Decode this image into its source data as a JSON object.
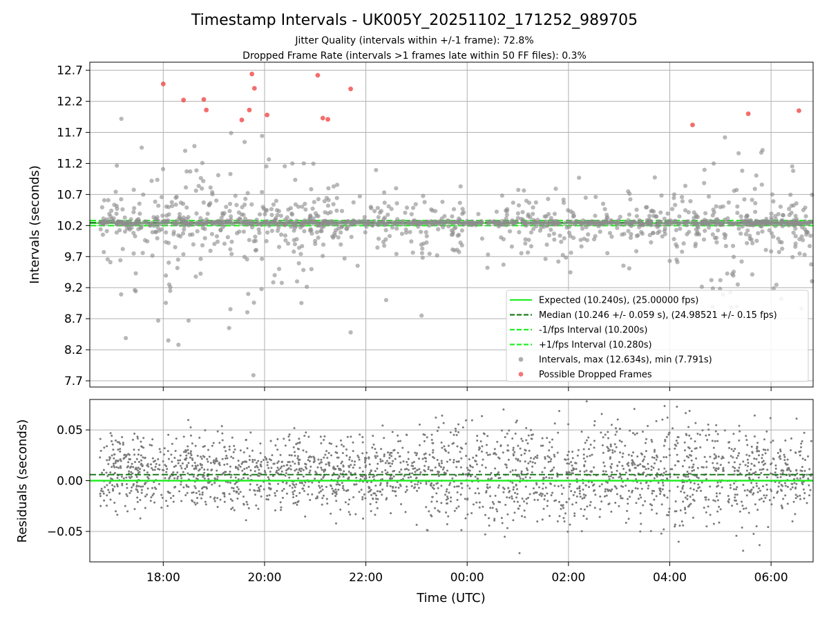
{
  "chart_data": [
    {
      "type": "scatter",
      "title": "Timestamp Intervals - UK005Y_20251102_171252_989705",
      "subtitle_lines": [
        "Jitter Quality (intervals within +/-1 frame): 72.8%",
        "Dropped Frame Rate (intervals >1 frames late within 50 FF files): 0.3%"
      ],
      "xlabel": "",
      "ylabel": "Intervals (seconds)",
      "x_unit": "hours since 00:00 UTC",
      "xlim": [
        -7.45,
        6.83
      ],
      "ylim": [
        7.6,
        12.83
      ],
      "yticks": [
        7.7,
        8.2,
        8.7,
        9.2,
        9.7,
        10.2,
        10.7,
        11.2,
        11.7,
        12.2,
        12.7
      ],
      "ytick_labels": [
        "7.7",
        "8.2",
        "8.7",
        "9.2",
        "9.7",
        "10.2",
        "10.7",
        "11.2",
        "11.7",
        "12.2",
        "12.7"
      ],
      "xticks": [
        -6,
        -4,
        -2,
        0,
        2,
        4,
        6
      ],
      "grid": true,
      "legend_position": "lower-right",
      "legend": [
        {
          "label": "Expected (10.240s), (25.00000 fps)",
          "kind": "line",
          "color": "#22ee22",
          "dash": "solid"
        },
        {
          "label": "Median (10.246 +/- 0.059 s), (24.98521 +/- 0.15 fps)",
          "kind": "line",
          "color": "#1a7a1a",
          "dash": "dashed"
        },
        {
          "label": "-1/fps Interval (10.200s)",
          "kind": "line",
          "color": "#22ee22",
          "dash": "dashed"
        },
        {
          "label": "+1/fps Interval (10.280s)",
          "kind": "line",
          "color": "#22ee22",
          "dash": "dashed"
        },
        {
          "label": "Intervals, max (12.634s), min (7.791s)",
          "kind": "marker",
          "color": "#8c8c8c"
        },
        {
          "label": "Possible Dropped Frames",
          "kind": "marker",
          "color": "#f03c3c"
        }
      ],
      "reference_lines": {
        "expected": 10.24,
        "median": 10.246,
        "minus_one_fps": 10.2,
        "plus_one_fps": 10.28
      },
      "series": [
        {
          "name": "Possible Dropped Frames",
          "color": "#f03c3c",
          "x": [
            -6.0,
            -5.6,
            -5.2,
            -5.15,
            -4.45,
            -4.3,
            -4.25,
            -4.2,
            -3.95,
            -2.95,
            -2.85,
            -2.75,
            -2.3,
            4.45,
            5.55,
            6.55
          ],
          "y": [
            12.48,
            12.22,
            12.23,
            12.06,
            11.9,
            12.06,
            12.64,
            12.41,
            11.98,
            12.62,
            11.93,
            11.91,
            12.4,
            11.82,
            12.0,
            12.05
          ]
        },
        {
          "name": "Intervals",
          "color": "#8c8c8c",
          "x": [
            -4.22,
            -5.7,
            -5.5,
            -4.7,
            -3.8,
            -3.4,
            -2.3,
            -1.6,
            -0.9,
            0.4,
            1.8,
            3.2,
            4.0,
            5.0,
            6.2,
            6.6,
            -6.1,
            -5.9
          ],
          "y": [
            7.79,
            8.28,
            8.67,
            8.55,
            9.4,
            9.9,
            8.48,
            9.0,
            8.75,
            9.52,
            9.62,
            9.51,
            9.63,
            9.32,
            9.02,
            8.86,
            8.67,
            8.35
          ]
        }
      ]
    },
    {
      "type": "scatter",
      "title": "",
      "xlabel": "Time (UTC)",
      "ylabel": "Residuals (seconds)",
      "x_unit": "hours since 00:00 UTC",
      "xlim": [
        -7.45,
        6.83
      ],
      "ylim": [
        -0.08,
        0.08
      ],
      "yticks": [
        -0.05,
        0.0,
        0.05
      ],
      "ytick_labels": [
        "−0.05",
        "0.00",
        "0.05"
      ],
      "xticks": [
        -6,
        -4,
        -2,
        0,
        2,
        4,
        6
      ],
      "xtick_labels": [
        "18:00",
        "20:00",
        "22:00",
        "00:00",
        "02:00",
        "04:00",
        "06:00"
      ],
      "grid": true,
      "reference_lines": {
        "expected": 0.0,
        "median": 0.006
      },
      "series": [
        {
          "name": "Residuals",
          "color": "#7a7a7a",
          "x": [
            -6.5,
            -5.0,
            -3.5,
            -2.0,
            -0.5,
            1.0,
            2.5,
            4.0,
            5.5,
            6.5
          ],
          "y": [
            0.01,
            0.02,
            -0.005,
            0.015,
            0.0,
            0.02,
            -0.01,
            0.025,
            0.005,
            0.01
          ]
        }
      ]
    }
  ]
}
